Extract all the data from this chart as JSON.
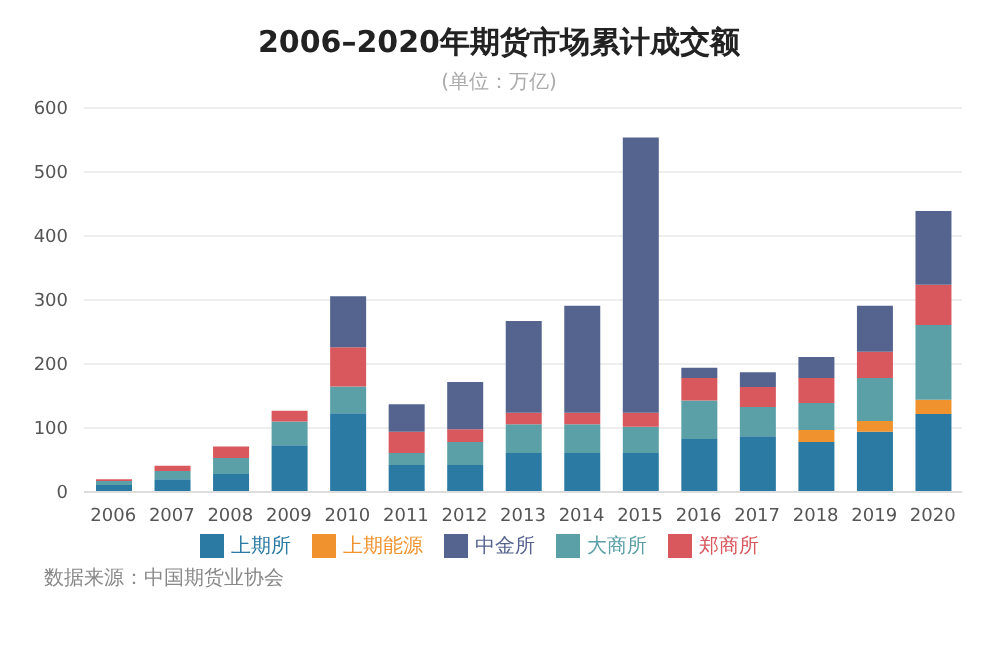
{
  "chart_data": {
    "type": "bar",
    "stacked": true,
    "title": "2006–2020年期货市场累计成交额",
    "subtitle": "(单位：万亿)",
    "categories": [
      "2006",
      "2007",
      "2008",
      "2009",
      "2010",
      "2011",
      "2012",
      "2013",
      "2014",
      "2015",
      "2016",
      "2017",
      "2018",
      "2019",
      "2020"
    ],
    "series": [
      {
        "name": "上期所",
        "color": "#2a7aa3",
        "values": [
          11,
          20,
          28,
          73,
          123,
          42,
          42,
          61,
          61,
          61,
          83,
          87,
          78,
          94,
          122
        ]
      },
      {
        "name": "上期能源",
        "color": "#f0922e",
        "values": [
          null,
          null,
          null,
          null,
          null,
          null,
          null,
          null,
          null,
          null,
          null,
          null,
          19,
          17,
          22
        ]
      },
      {
        "name": "大商所",
        "color": "#5ba0a6",
        "values": [
          6,
          13,
          25,
          37,
          42,
          19,
          36,
          45,
          45,
          41,
          60,
          46,
          42,
          67,
          117
        ]
      },
      {
        "name": "郑商所",
        "color": "#d9585e",
        "values": [
          3,
          8,
          18,
          17,
          61,
          33,
          20,
          18,
          18,
          22,
          35,
          31,
          39,
          41,
          63
        ]
      },
      {
        "name": "中金所",
        "color": "#55648f",
        "values": [
          null,
          null,
          null,
          null,
          80,
          43,
          74,
          143,
          167,
          430,
          16,
          23,
          33,
          72,
          115
        ]
      }
    ],
    "ylim": [
      0,
      600
    ],
    "yticks": [
      0,
      100,
      200,
      300,
      400,
      500,
      600
    ],
    "grid": "y",
    "legend": "bottom",
    "annotations": [
      "数据来源：中国期货业协会"
    ]
  }
}
